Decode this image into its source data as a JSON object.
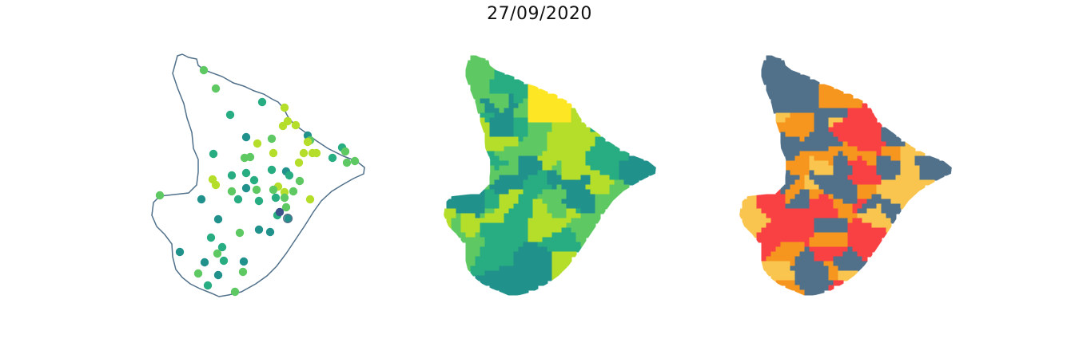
{
  "title": "27/09/2020",
  "colors": {
    "outline": "#51708a",
    "viridis": [
      "#440154",
      "#3b528b",
      "#21918c",
      "#27ad81",
      "#5ec962",
      "#b5de2b",
      "#fde725"
    ],
    "categories": [
      "#51708a",
      "#f7961e",
      "#f94144",
      "#f9c54e"
    ]
  },
  "panels": [
    {
      "name": "points",
      "kind": "scatter-on-outline"
    },
    {
      "name": "choropleth",
      "kind": "continuous-viridis"
    },
    {
      "name": "categorical",
      "kind": "four-class"
    }
  ]
}
